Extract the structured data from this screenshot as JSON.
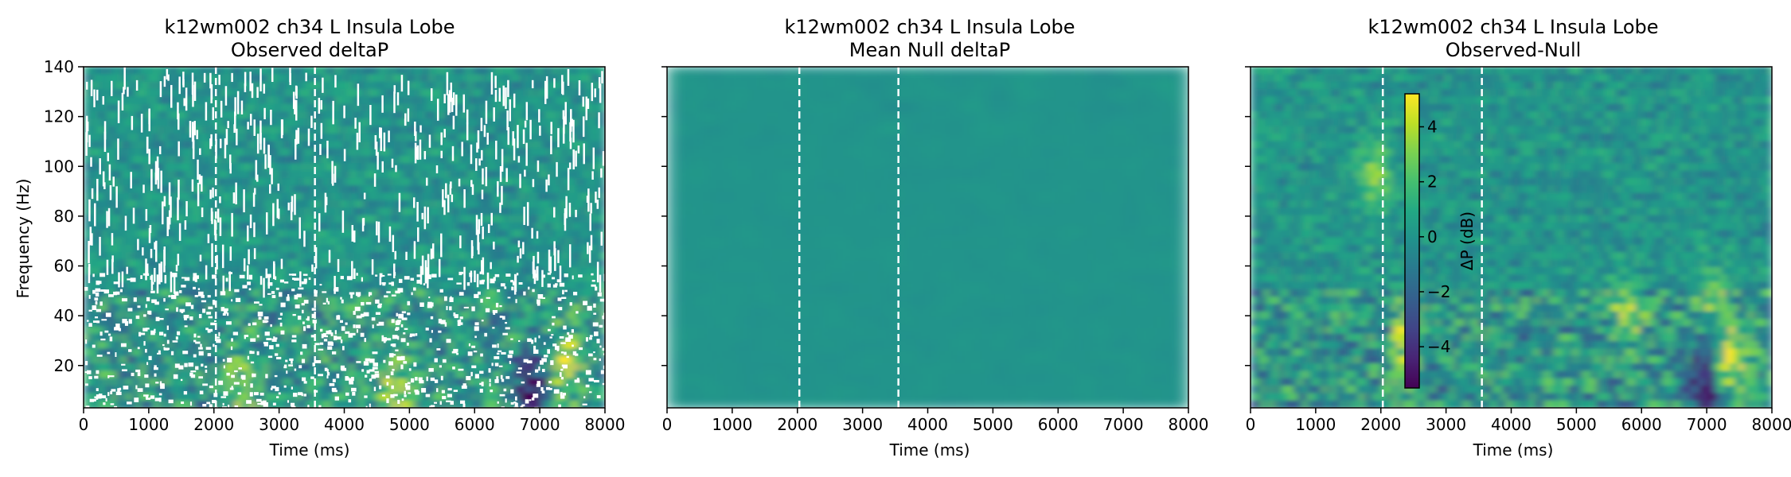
{
  "chart_data": [
    {
      "type": "heatmap",
      "title_line1": "k12wm002 ch34 L Insula Lobe",
      "title_line2": "Observed deltaP",
      "xlabel": "Time (ms)",
      "ylabel": "Frequency (Hz)",
      "xlim": [
        0,
        8000
      ],
      "ylim": [
        3,
        140
      ],
      "xticks": [
        "0",
        "1000",
        "2000",
        "3000",
        "4000",
        "5000",
        "6000",
        "7000",
        "8000"
      ],
      "yticks": [
        "20",
        "40",
        "60",
        "80",
        "100",
        "120",
        "140"
      ],
      "event_lines_ms": [
        2030,
        3550
      ],
      "colormap": "viridis",
      "masked_as_white": true,
      "hotspots": [
        {
          "time_ms": 7400,
          "freq_hz": 20,
          "value_db": 4
        },
        {
          "time_ms": 2400,
          "freq_hz": 10,
          "value_db": 3
        },
        {
          "time_ms": 6900,
          "freq_hz": 10,
          "value_db": -5
        },
        {
          "time_ms": 4800,
          "freq_hz": 8,
          "value_db": 3
        }
      ]
    },
    {
      "type": "heatmap",
      "title_line1": "k12wm002 ch34 L Insula Lobe",
      "title_line2": "Mean Null deltaP",
      "xlabel": "Time (ms)",
      "xlim": [
        0,
        8000
      ],
      "ylim": [
        3,
        140
      ],
      "xticks": [
        "0",
        "1000",
        "2000",
        "3000",
        "4000",
        "5000",
        "6000",
        "7000",
        "8000"
      ],
      "event_lines_ms": [
        2030,
        3550
      ],
      "colormap": "viridis",
      "approx_value_db": 0
    },
    {
      "type": "heatmap",
      "title_line1": "k12wm002 ch34 L Insula Lobe",
      "title_line2": "Observed-Null",
      "xlabel": "Time (ms)",
      "xlim": [
        0,
        8000
      ],
      "ylim": [
        3,
        140
      ],
      "xticks": [
        "0",
        "1000",
        "2000",
        "3000",
        "4000",
        "5000",
        "6000",
        "7000",
        "8000"
      ],
      "event_lines_ms": [
        2030,
        3550
      ],
      "colormap": "viridis",
      "colorbar": {
        "label": "ΔP (dB)",
        "range": [
          -5.5,
          5.2
        ],
        "ticks": [
          "4",
          "2",
          "0",
          "−2",
          "−4"
        ],
        "tick_values": [
          4,
          2,
          0,
          -2,
          -4
        ]
      },
      "hotspots": [
        {
          "time_ms": 7400,
          "freq_hz": 20,
          "value_db": 4
        },
        {
          "time_ms": 6950,
          "freq_hz": 10,
          "value_db": -5
        },
        {
          "time_ms": 2400,
          "freq_hz": 30,
          "value_db": 3
        },
        {
          "time_ms": 5800,
          "freq_hz": 40,
          "value_db": 3
        },
        {
          "time_ms": 7100,
          "freq_hz": 45,
          "value_db": 2.5
        },
        {
          "time_ms": 1900,
          "freq_hz": 95,
          "value_db": 3
        }
      ]
    }
  ]
}
